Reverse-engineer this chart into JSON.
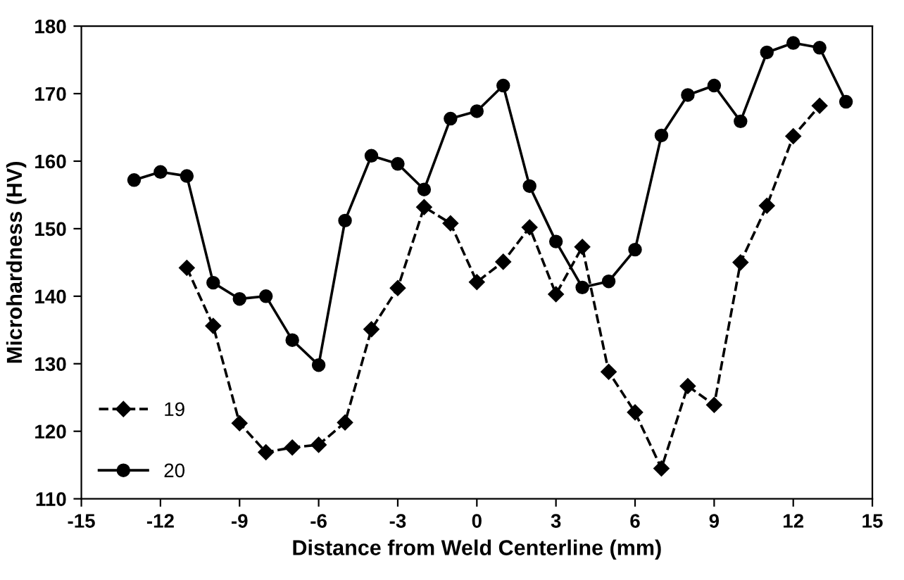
{
  "chart_data": {
    "type": "line",
    "xlabel": "Distance from Weld Centerline (mm)",
    "ylabel": "Microhardness (HV)",
    "xlim": [
      -15,
      15
    ],
    "xticks": [
      -15,
      -12,
      -9,
      -6,
      -3,
      0,
      3,
      6,
      9,
      12,
      15
    ],
    "ylim": [
      110,
      180
    ],
    "yticks": [
      110,
      120,
      130,
      140,
      150,
      160,
      170,
      180
    ],
    "grid": false,
    "legend": "bottom left",
    "series": [
      {
        "name": "19",
        "color": "#000000",
        "marker": "diamond",
        "line_style": "dashed",
        "x": [
          -11,
          -10,
          -9,
          -8,
          -7,
          -6,
          -5,
          -4,
          -3,
          -2,
          -1,
          0,
          1,
          2,
          3,
          4,
          5,
          6,
          7,
          8,
          9,
          10,
          11,
          12,
          13
        ],
        "values": [
          144.2,
          135.6,
          121.2,
          116.9,
          117.6,
          118,
          121.3,
          135.1,
          141.2,
          153.2,
          150.8,
          142.1,
          145.1,
          150.2,
          140.3,
          147.3,
          128.8,
          122.8,
          114.5,
          126.7,
          123.9,
          145,
          153.4,
          163.7,
          168.2
        ]
      },
      {
        "name": "20",
        "color": "#000000",
        "marker": "circle",
        "line_style": "solid",
        "x": [
          -13,
          -12,
          -11,
          -10,
          -9,
          -8,
          -7,
          -6,
          -5,
          -4,
          -3,
          -2,
          -1,
          0,
          1,
          2,
          3,
          4,
          5,
          6,
          7,
          8,
          9,
          10,
          11,
          12,
          13,
          14
        ],
        "values": [
          157.2,
          158.4,
          157.8,
          142,
          139.6,
          140,
          133.5,
          129.8,
          151.2,
          160.8,
          159.6,
          155.8,
          166.3,
          167.4,
          171.2,
          156.3,
          148.1,
          141.3,
          142.2,
          146.9,
          163.8,
          169.8,
          171.2,
          165.9,
          176.1,
          177.5,
          176.8,
          168.8
        ]
      }
    ]
  }
}
